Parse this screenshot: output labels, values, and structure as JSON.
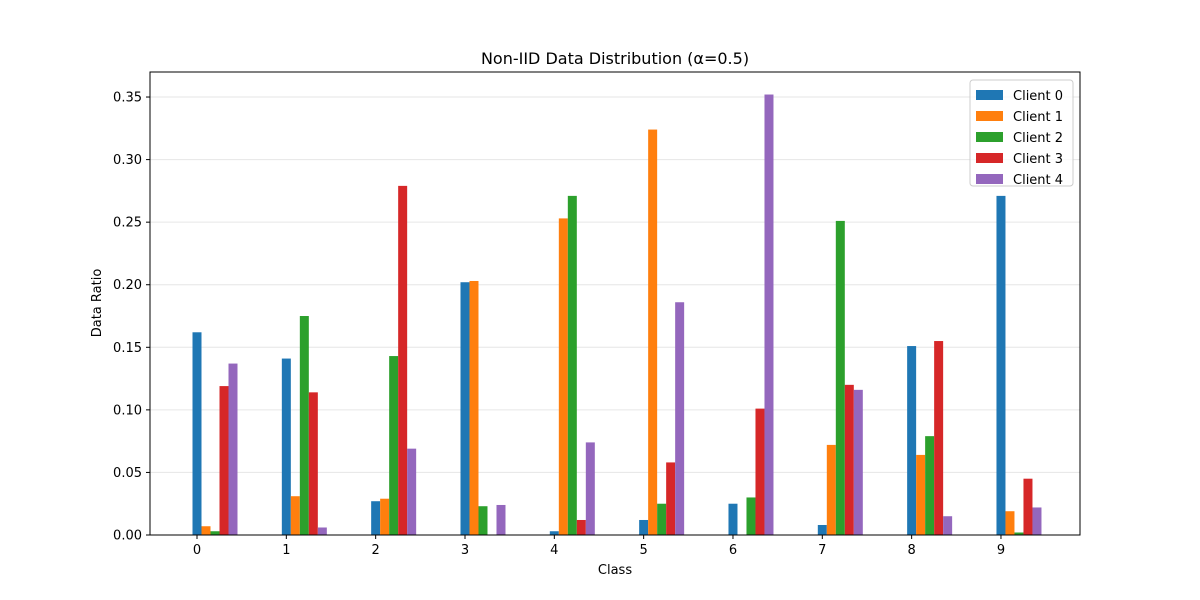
{
  "chart_data": {
    "type": "bar",
    "title": "Non-IID Data Distribution (α=0.5)",
    "xlabel": "Class",
    "ylabel": "Data Ratio",
    "categories": [
      "0",
      "1",
      "2",
      "3",
      "4",
      "5",
      "6",
      "7",
      "8",
      "9"
    ],
    "ylim": [
      0,
      0.37
    ],
    "yticks": [
      "0.00",
      "0.05",
      "0.10",
      "0.15",
      "0.20",
      "0.25",
      "0.30",
      "0.35"
    ],
    "grid": "y",
    "legend_position": "top-right",
    "series": [
      {
        "name": "Client 0",
        "color": "#1f77b4",
        "values": [
          0.162,
          0.141,
          0.027,
          0.202,
          0.003,
          0.012,
          0.025,
          0.008,
          0.151,
          0.271
        ]
      },
      {
        "name": "Client 1",
        "color": "#ff7f0e",
        "values": [
          0.007,
          0.031,
          0.029,
          0.203,
          0.253,
          0.324,
          0.0,
          0.072,
          0.064,
          0.019
        ]
      },
      {
        "name": "Client 2",
        "color": "#2ca02c",
        "values": [
          0.003,
          0.175,
          0.143,
          0.023,
          0.271,
          0.025,
          0.03,
          0.251,
          0.079,
          0.002
        ]
      },
      {
        "name": "Client 3",
        "color": "#d62728",
        "values": [
          0.119,
          0.114,
          0.279,
          0.0,
          0.012,
          0.058,
          0.101,
          0.12,
          0.155,
          0.045
        ]
      },
      {
        "name": "Client 4",
        "color": "#9467bd",
        "values": [
          0.137,
          0.006,
          0.069,
          0.024,
          0.074,
          0.186,
          0.352,
          0.116,
          0.015,
          0.022
        ]
      }
    ]
  }
}
